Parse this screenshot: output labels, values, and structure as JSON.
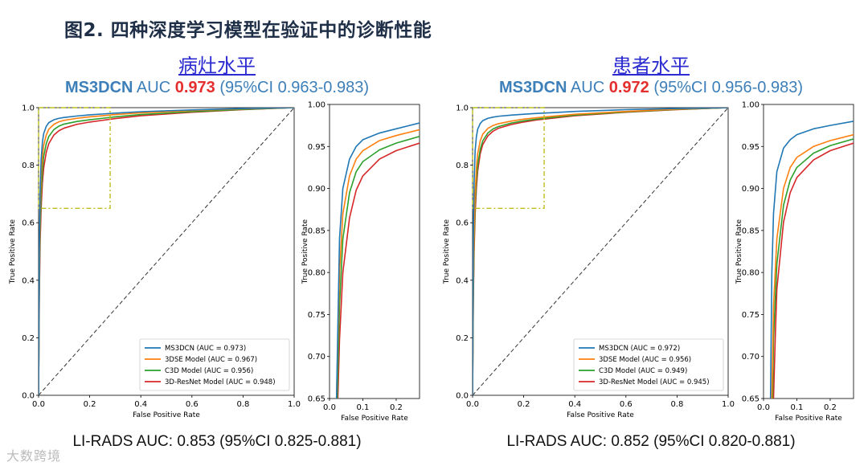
{
  "title": "图2. 四种深度学习模型在验证中的诊断性能",
  "watermark": "大数跨境",
  "colors": {
    "MS3DCN": "#1f77b4",
    "3DSE": "#ff7f0e",
    "C3D": "#2ca02c",
    "ResNet": "#d62728",
    "zoom_box": "#bfbf1f",
    "diagonal": "#333333"
  },
  "panels": [
    {
      "subtitle": "病灶水平",
      "auc_model": "MS3DCN",
      "auc_prefix": "AUC",
      "auc_value": "0.973",
      "auc_ci": "(95%CI 0.963-0.983)",
      "lirads": "LI-RADS AUC: 0.853 (95%CI 0.825-0.881)"
    },
    {
      "subtitle": "患者水平",
      "auc_model": "MS3DCN",
      "auc_prefix": "AUC",
      "auc_value": "0.972",
      "auc_ci": "(95%CI 0.956-0.983)",
      "lirads": "LI-RADS AUC: 0.852 (95%CI 0.820-0.881)"
    }
  ],
  "chart_data": [
    {
      "type": "line",
      "title": "病灶水平 (main)",
      "xlabel": "False Positive Rate",
      "ylabel": "True Positive Rate",
      "xlim": [
        0,
        1
      ],
      "ylim": [
        0,
        1
      ],
      "xticks": [
        "0.0",
        "0.2",
        "0.4",
        "0.6",
        "0.8",
        "1.0"
      ],
      "yticks": [
        "0.0",
        "0.2",
        "0.4",
        "0.6",
        "0.8",
        "1.0"
      ],
      "zoom_region": {
        "x": [
          0,
          0.28
        ],
        "y": [
          0.65,
          1.0
        ]
      },
      "legend": [
        "MS3DCN (AUC = 0.973)",
        "3DSE Model (AUC = 0.967)",
        "C3D Model (AUC = 0.956)",
        "3D-ResNet Model (AUC = 0.948)"
      ],
      "legend_position": "lower-right",
      "series": [
        {
          "name": "MS3DCN",
          "x": [
            0,
            0.003,
            0.006,
            0.01,
            0.015,
            0.02,
            0.03,
            0.04,
            0.06,
            0.08,
            0.1,
            0.15,
            0.2,
            0.25,
            0.3,
            0.4,
            0.6,
            0.8,
            1.0
          ],
          "values": [
            0,
            0.5,
            0.7,
            0.82,
            0.88,
            0.91,
            0.935,
            0.948,
            0.958,
            0.963,
            0.966,
            0.971,
            0.975,
            0.978,
            0.981,
            0.986,
            0.992,
            0.997,
            1.0
          ]
        },
        {
          "name": "3DSE Model",
          "x": [
            0,
            0.003,
            0.006,
            0.01,
            0.015,
            0.02,
            0.03,
            0.04,
            0.06,
            0.08,
            0.1,
            0.15,
            0.2,
            0.25,
            0.3,
            0.4,
            0.6,
            0.8,
            1.0
          ],
          "values": [
            0,
            0.45,
            0.64,
            0.76,
            0.83,
            0.87,
            0.905,
            0.925,
            0.942,
            0.951,
            0.956,
            0.963,
            0.968,
            0.972,
            0.976,
            0.982,
            0.99,
            0.996,
            1.0
          ]
        },
        {
          "name": "C3D Model",
          "x": [
            0,
            0.003,
            0.006,
            0.01,
            0.015,
            0.02,
            0.03,
            0.04,
            0.06,
            0.08,
            0.1,
            0.15,
            0.2,
            0.25,
            0.3,
            0.4,
            0.6,
            0.8,
            1.0
          ],
          "values": [
            0,
            0.4,
            0.58,
            0.7,
            0.78,
            0.83,
            0.875,
            0.9,
            0.924,
            0.936,
            0.943,
            0.952,
            0.958,
            0.963,
            0.968,
            0.976,
            0.986,
            0.994,
            1.0
          ]
        },
        {
          "name": "3D-ResNet Model",
          "x": [
            0,
            0.003,
            0.006,
            0.01,
            0.015,
            0.02,
            0.03,
            0.04,
            0.06,
            0.08,
            0.1,
            0.15,
            0.2,
            0.25,
            0.3,
            0.4,
            0.6,
            0.8,
            1.0
          ],
          "values": [
            0,
            0.35,
            0.53,
            0.65,
            0.74,
            0.79,
            0.845,
            0.875,
            0.905,
            0.92,
            0.929,
            0.942,
            0.95,
            0.956,
            0.962,
            0.972,
            0.984,
            0.993,
            1.0
          ]
        }
      ]
    },
    {
      "type": "line",
      "title": "病灶水平 (zoom)",
      "xlabel": "False Positive Rate",
      "ylabel": "True Positive Rate",
      "xlim": [
        0,
        0.27
      ],
      "ylim": [
        0.65,
        1.0
      ],
      "xticks": [
        "0.0",
        "0.1",
        "0.2"
      ],
      "yticks": [
        "0.65",
        "0.70",
        "0.75",
        "0.80",
        "0.85",
        "0.90",
        "0.95",
        "1.00"
      ],
      "series": [
        {
          "name": "MS3DCN",
          "x": [
            0.021,
            0.03,
            0.04,
            0.06,
            0.08,
            0.1,
            0.15,
            0.2,
            0.27
          ],
          "values": [
            0.65,
            0.84,
            0.9,
            0.935,
            0.95,
            0.958,
            0.966,
            0.971,
            0.978
          ]
        },
        {
          "name": "3DSE Model",
          "x": [
            0.021,
            0.03,
            0.04,
            0.06,
            0.08,
            0.1,
            0.15,
            0.2,
            0.27
          ],
          "values": [
            0.65,
            0.8,
            0.87,
            0.915,
            0.935,
            0.945,
            0.957,
            0.963,
            0.97
          ]
        },
        {
          "name": "C3D Model",
          "x": [
            0.023,
            0.03,
            0.04,
            0.06,
            0.08,
            0.1,
            0.15,
            0.2,
            0.27
          ],
          "values": [
            0.65,
            0.76,
            0.84,
            0.895,
            0.92,
            0.932,
            0.946,
            0.954,
            0.962
          ]
        },
        {
          "name": "3D-ResNet Model",
          "x": [
            0.025,
            0.03,
            0.04,
            0.06,
            0.08,
            0.1,
            0.15,
            0.2,
            0.27
          ],
          "values": [
            0.65,
            0.72,
            0.8,
            0.865,
            0.898,
            0.915,
            0.935,
            0.945,
            0.954
          ]
        }
      ]
    },
    {
      "type": "line",
      "title": "患者水平 (main)",
      "xlabel": "False Positive Rate",
      "ylabel": "True Positive Rate",
      "xlim": [
        0,
        1
      ],
      "ylim": [
        0,
        1
      ],
      "xticks": [
        "0.0",
        "0.2",
        "0.4",
        "0.6",
        "0.8",
        "1.0"
      ],
      "yticks": [
        "0.0",
        "0.2",
        "0.4",
        "0.6",
        "0.8",
        "1.0"
      ],
      "zoom_region": {
        "x": [
          0,
          0.28
        ],
        "y": [
          0.65,
          1.0
        ]
      },
      "legend": [
        "MS3DCN (AUC = 0.972)",
        "3DSE Model (AUC = 0.956)",
        "C3D Model (AUC = 0.949)",
        "3D-ResNet Model (AUC = 0.945)"
      ],
      "legend_position": "lower-right",
      "series": [
        {
          "name": "MS3DCN",
          "x": [
            0,
            0.003,
            0.006,
            0.01,
            0.015,
            0.02,
            0.03,
            0.04,
            0.06,
            0.08,
            0.1,
            0.15,
            0.2,
            0.25,
            0.3,
            0.4,
            0.6,
            0.8,
            1.0
          ],
          "values": [
            0,
            0.55,
            0.74,
            0.85,
            0.9,
            0.925,
            0.945,
            0.955,
            0.963,
            0.967,
            0.97,
            0.974,
            0.977,
            0.98,
            0.982,
            0.987,
            0.993,
            0.997,
            1.0
          ]
        },
        {
          "name": "3DSE Model",
          "x": [
            0,
            0.003,
            0.006,
            0.01,
            0.015,
            0.02,
            0.03,
            0.04,
            0.06,
            0.08,
            0.1,
            0.15,
            0.2,
            0.25,
            0.3,
            0.4,
            0.6,
            0.8,
            1.0
          ],
          "values": [
            0,
            0.4,
            0.58,
            0.7,
            0.79,
            0.84,
            0.885,
            0.908,
            0.928,
            0.938,
            0.944,
            0.953,
            0.96,
            0.965,
            0.969,
            0.977,
            0.987,
            0.995,
            1.0
          ]
        },
        {
          "name": "C3D Model",
          "x": [
            0,
            0.003,
            0.006,
            0.01,
            0.015,
            0.02,
            0.03,
            0.04,
            0.06,
            0.08,
            0.1,
            0.15,
            0.2,
            0.25,
            0.3,
            0.4,
            0.6,
            0.8,
            1.0
          ],
          "values": [
            0,
            0.36,
            0.53,
            0.66,
            0.75,
            0.8,
            0.855,
            0.885,
            0.912,
            0.926,
            0.934,
            0.946,
            0.954,
            0.96,
            0.965,
            0.974,
            0.985,
            0.994,
            1.0
          ]
        },
        {
          "name": "3D-ResNet Model",
          "x": [
            0,
            0.003,
            0.006,
            0.01,
            0.015,
            0.02,
            0.03,
            0.04,
            0.06,
            0.08,
            0.1,
            0.15,
            0.2,
            0.25,
            0.3,
            0.4,
            0.6,
            0.8,
            1.0
          ],
          "values": [
            0,
            0.33,
            0.5,
            0.63,
            0.72,
            0.78,
            0.84,
            0.872,
            0.902,
            0.918,
            0.928,
            0.941,
            0.95,
            0.957,
            0.962,
            0.972,
            0.984,
            0.993,
            1.0
          ]
        }
      ]
    },
    {
      "type": "line",
      "title": "患者水平 (zoom)",
      "xlabel": "False Positive Rate",
      "ylabel": "True Positive Rate",
      "xlim": [
        0,
        0.27
      ],
      "ylim": [
        0.65,
        1.0
      ],
      "xticks": [
        "0.0",
        "0.1",
        "0.2"
      ],
      "yticks": [
        "0.65",
        "0.70",
        "0.75",
        "0.80",
        "0.85",
        "0.90",
        "0.95",
        "1.00"
      ],
      "series": [
        {
          "name": "MS3DCN",
          "x": [
            0.021,
            0.025,
            0.03,
            0.04,
            0.06,
            0.08,
            0.1,
            0.15,
            0.2,
            0.27
          ],
          "values": [
            0.65,
            0.8,
            0.87,
            0.92,
            0.948,
            0.958,
            0.964,
            0.971,
            0.975,
            0.98
          ]
        },
        {
          "name": "3DSE Model",
          "x": [
            0.025,
            0.03,
            0.04,
            0.06,
            0.08,
            0.1,
            0.15,
            0.2,
            0.27
          ],
          "values": [
            0.65,
            0.76,
            0.84,
            0.9,
            0.925,
            0.937,
            0.95,
            0.957,
            0.964
          ]
        },
        {
          "name": "C3D Model",
          "x": [
            0.027,
            0.03,
            0.04,
            0.06,
            0.08,
            0.1,
            0.15,
            0.2,
            0.27
          ],
          "values": [
            0.65,
            0.72,
            0.81,
            0.88,
            0.91,
            0.925,
            0.942,
            0.951,
            0.959
          ]
        },
        {
          "name": "3D-ResNet Model",
          "x": [
            0.03,
            0.035,
            0.04,
            0.06,
            0.08,
            0.1,
            0.15,
            0.2,
            0.27
          ],
          "values": [
            0.65,
            0.72,
            0.78,
            0.86,
            0.895,
            0.913,
            0.934,
            0.945,
            0.954
          ]
        }
      ]
    }
  ]
}
